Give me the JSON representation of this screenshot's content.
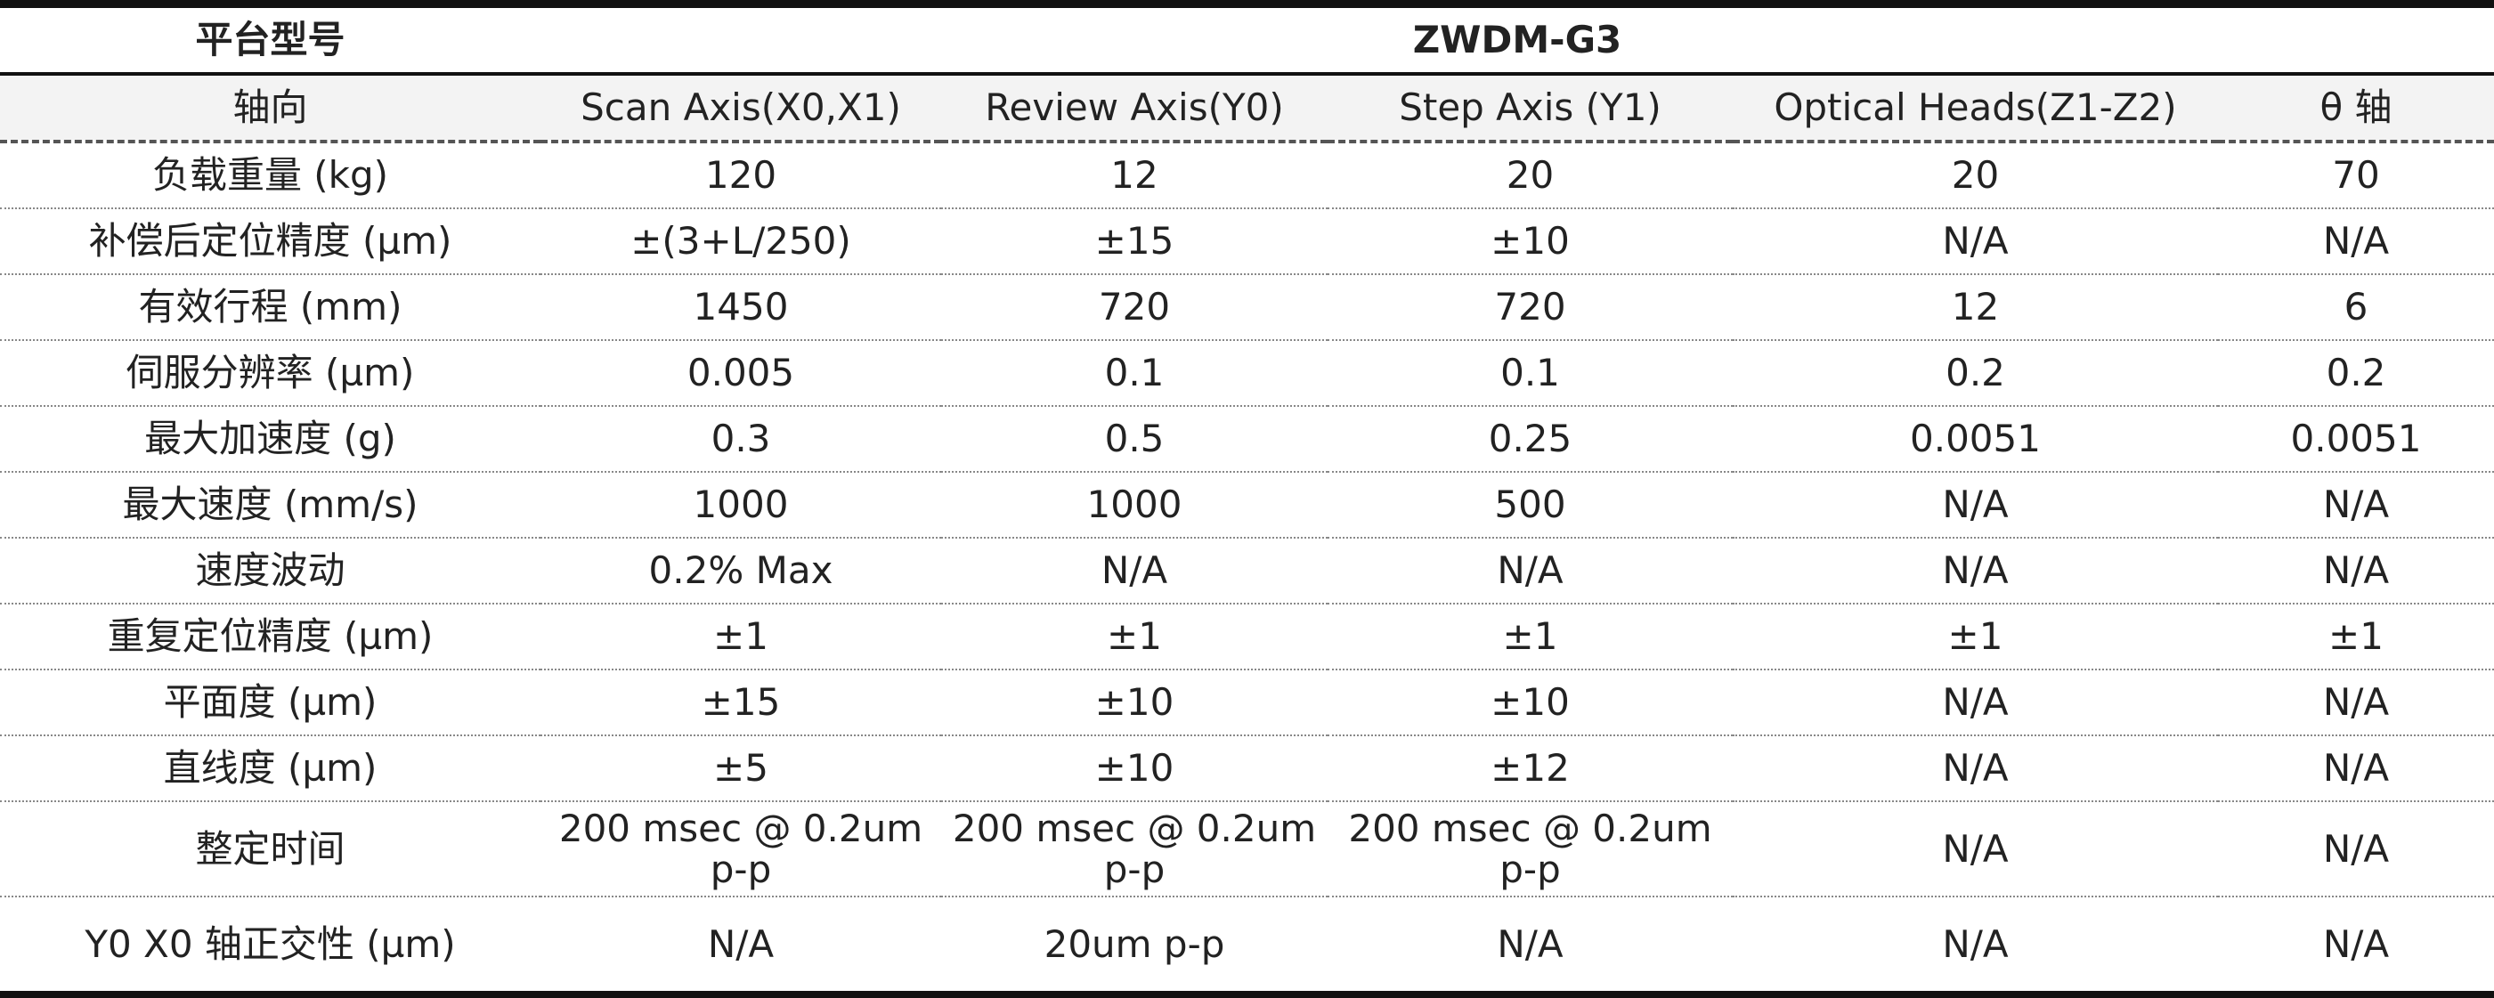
{
  "table": {
    "header": [
      "平台型号",
      "ZWDM-G3"
    ],
    "columns": [
      "轴向",
      "Scan Axis(X0,X1)",
      "Review Axis(Y0)",
      "Step Axis (Y1)",
      "Optical Heads(Z1-Z2)",
      "θ 轴"
    ],
    "rows": [
      [
        "负载重量 (kg)",
        "120",
        "12",
        "20",
        "20",
        "70"
      ],
      [
        "补偿后定位精度 (µm)",
        "±(3+L/250)",
        "±15",
        "±10",
        "N/A",
        "N/A"
      ],
      [
        "有效行程 (mm)",
        "1450",
        "720",
        "720",
        "12",
        "6"
      ],
      [
        "伺服分辨率 (µm)",
        "0.005",
        "0.1",
        "0.1",
        "0.2",
        "0.2"
      ],
      [
        "最大加速度 (g)",
        "0.3",
        "0.5",
        "0.25",
        "0.0051",
        "0.0051"
      ],
      [
        "最大速度 (mm/s)",
        "1000",
        "1000",
        "500",
        "N/A",
        "N/A"
      ],
      [
        "速度波动",
        "0.2% Max",
        "N/A",
        "N/A",
        "N/A",
        "N/A"
      ],
      [
        "重复定位精度 (µm)",
        "±1",
        "±1",
        "±1",
        "±1",
        "±1"
      ],
      [
        "平面度 (µm)",
        "±15",
        "±10",
        "±10",
        "N/A",
        "N/A"
      ],
      [
        "直线度 (µm)",
        "±5",
        "±10",
        "±12",
        "N/A",
        "N/A"
      ],
      [
        "整定时间",
        "200 msec @ 0.2um p-p",
        "200 msec @ 0.2um p-p",
        "200 msec @ 0.2um p-p",
        "N/A",
        "N/A"
      ],
      [
        "Y0 X0 轴正交性 (µm)",
        "N/A",
        "20um p-p",
        "N/A",
        "N/A",
        "N/A"
      ]
    ]
  }
}
